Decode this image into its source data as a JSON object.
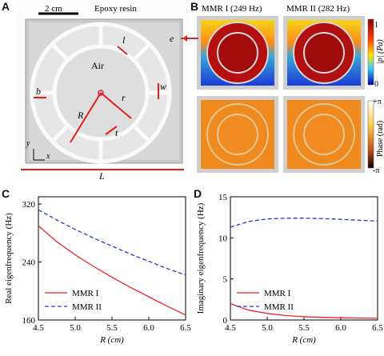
{
  "panels": {
    "A": {
      "label": "A",
      "scale_bar": "2 cm",
      "material": "Epoxy resin",
      "air": "Air",
      "dims": {
        "l": "l",
        "e": "e",
        "w": "w",
        "b": "b",
        "R": "R",
        "r": "r",
        "t": "t",
        "L": "L"
      },
      "axes": {
        "y": "y",
        "x": "x"
      }
    },
    "B": {
      "label": "B",
      "mode1_title": "MMR I (249 Hz)",
      "mode2_title": "MMR II (282 Hz)",
      "cb1": {
        "label": "|p| (Pa)",
        "max": "1",
        "min": "0"
      },
      "cb2": {
        "label": "Phase (rad)",
        "max": "+π",
        "min": "-π"
      }
    },
    "C": {
      "label": "C"
    },
    "D": {
      "label": "D"
    }
  },
  "chart_data": [
    {
      "type": "line",
      "panel": "C",
      "xlabel": "R (cm)",
      "ylabel": "Real eigenfrequency (Hz)",
      "xlim": [
        4.5,
        6.5
      ],
      "ylim": [
        160,
        330
      ],
      "xticks": [
        "4.5",
        "5.0",
        "5.5",
        "6.0",
        "6.5"
      ],
      "yticks": [
        "160",
        "240",
        "320"
      ],
      "x": [
        4.5,
        4.75,
        5.0,
        5.25,
        5.5,
        5.75,
        6.0,
        6.25,
        6.5
      ],
      "series": [
        {
          "name": "MMR I",
          "color": "#e8262b",
          "style": "solid",
          "values": [
            290,
            268,
            250,
            234,
            219,
            205,
            192,
            179,
            167
          ]
        },
        {
          "name": "MMR II",
          "color": "#2a36c8",
          "style": "dashed",
          "values": [
            312,
            298,
            285,
            273,
            262,
            251,
            241,
            231,
            222
          ]
        }
      ],
      "legend": "bottom-left"
    },
    {
      "type": "line",
      "panel": "D",
      "xlabel": "R (cm)",
      "ylabel": "Imaginary eigenfrequency (Hz)",
      "xlim": [
        4.5,
        6.5
      ],
      "ylim": [
        0,
        15
      ],
      "xticks": [
        "4.5",
        "5.0",
        "5.5",
        "6.0",
        "6.5"
      ],
      "yticks": [
        "0",
        "5",
        "10",
        "15"
      ],
      "x": [
        4.5,
        4.75,
        5.0,
        5.25,
        5.5,
        5.75,
        6.0,
        6.25,
        6.5
      ],
      "series": [
        {
          "name": "MMR I",
          "color": "#e8262b",
          "style": "solid",
          "values": [
            2.0,
            1.2,
            0.8,
            0.55,
            0.4,
            0.32,
            0.27,
            0.23,
            0.2
          ]
        },
        {
          "name": "MMR II",
          "color": "#2a36c8",
          "style": "dashed",
          "values": [
            11.3,
            12.0,
            12.3,
            12.4,
            12.4,
            12.35,
            12.25,
            12.15,
            12.05
          ]
        }
      ],
      "legend": "bottom-left"
    }
  ]
}
